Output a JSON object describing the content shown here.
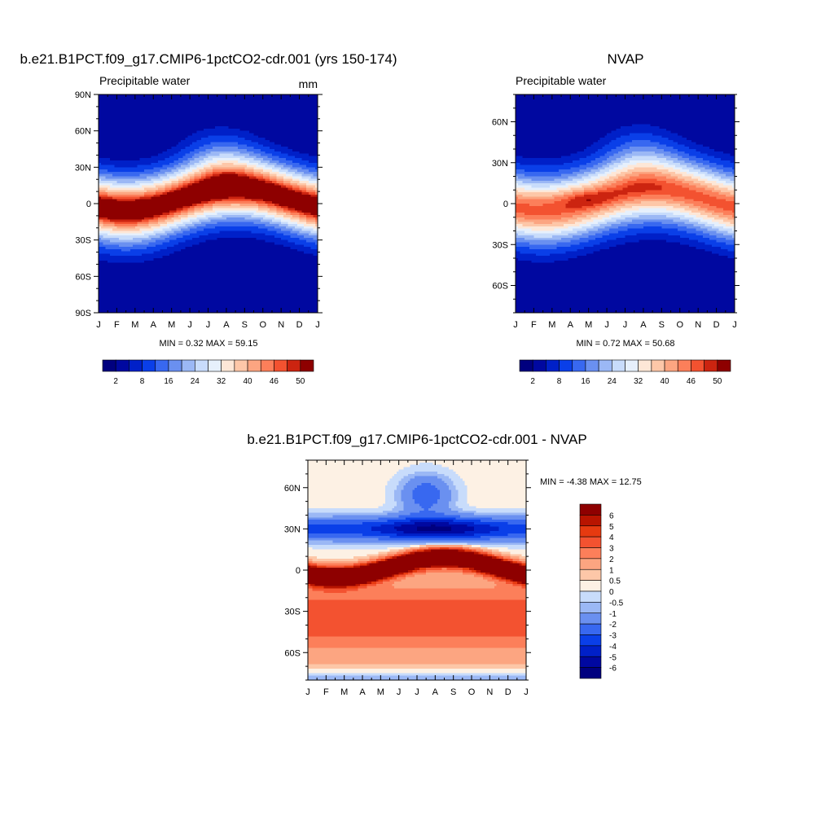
{
  "panels": [
    {
      "title": "b.e21.B1PCT.f09_g17.CMIP6-1pctCO2-cdr.001 (yrs 150-174)",
      "left_label": "Precipitable water",
      "right_label": "mm",
      "y_ticks": [
        "90N",
        "60N",
        "30N",
        "0",
        "30S",
        "60S",
        "90S"
      ],
      "x_ticks": [
        "J",
        "F",
        "M",
        "A",
        "M",
        "J",
        "J",
        "A",
        "S",
        "O",
        "N",
        "D",
        "J"
      ],
      "stats": "MIN =   0.32 MAX =  59.15",
      "colorbar_labels": [
        "2",
        "8",
        "16",
        "24",
        "32",
        "40",
        "46",
        "50"
      ]
    },
    {
      "title": "NVAP",
      "left_label": "Precipitable water",
      "right_label": "",
      "y_ticks": [
        "60N",
        "30N",
        "0",
        "30S",
        "60S"
      ],
      "x_ticks": [
        "J",
        "F",
        "M",
        "A",
        "M",
        "J",
        "J",
        "A",
        "S",
        "O",
        "N",
        "D",
        "J"
      ],
      "stats": "MIN =   0.72 MAX =  50.68",
      "colorbar_labels": [
        "2",
        "8",
        "16",
        "24",
        "32",
        "40",
        "46",
        "50"
      ]
    },
    {
      "title": "b.e21.B1PCT.f09_g17.CMIP6-1pctCO2-cdr.001 - NVAP",
      "y_ticks": [
        "60N",
        "30N",
        "0",
        "30S",
        "60S"
      ],
      "x_ticks": [
        "J",
        "F",
        "M",
        "A",
        "M",
        "J",
        "J",
        "A",
        "S",
        "O",
        "N",
        "D",
        "J"
      ],
      "stats": "MIN =  -4.38 MAX =  12.75",
      "colorbar_labels": [
        "6",
        "5",
        "4",
        "3",
        "2",
        "1",
        "0.5",
        "0",
        "-0.5",
        "-1",
        "-2",
        "-3",
        "-4",
        "-5",
        "-6"
      ]
    }
  ],
  "chart_data": [
    {
      "type": "heatmap",
      "title": "b.e21.B1PCT.f09_g17.CMIP6-1pctCO2-cdr.001 (yrs 150-174)",
      "field": "Precipitable water",
      "units": "mm",
      "x": "month (annual cycle)",
      "y_range": [
        -90,
        90
      ],
      "min": 0.32,
      "max": 59.15,
      "levels": [
        2,
        5,
        8,
        12,
        16,
        20,
        24,
        28,
        32,
        36,
        40,
        43,
        46,
        48,
        50
      ],
      "colors": [
        "#00007f",
        "#0008a0",
        "#0020c8",
        "#0a3fe8",
        "#3868f0",
        "#6a90f0",
        "#9bb8f5",
        "#c8dcfb",
        "#e6f0fc",
        "#fde7d7",
        "#fdc7a8",
        "#fca581",
        "#fc7f5a",
        "#f35230",
        "#cc2410",
        "#8e0000"
      ]
    },
    {
      "type": "heatmap",
      "title": "NVAP",
      "field": "Precipitable water",
      "y_range": [
        -80,
        80
      ],
      "min": 0.72,
      "max": 50.68,
      "levels": [
        2,
        5,
        8,
        12,
        16,
        20,
        24,
        28,
        32,
        36,
        40,
        43,
        46,
        48,
        50
      ],
      "colors": [
        "#00007f",
        "#0008a0",
        "#0020c8",
        "#0a3fe8",
        "#3868f0",
        "#6a90f0",
        "#9bb8f5",
        "#c8dcfb",
        "#e6f0fc",
        "#fde7d7",
        "#fdc7a8",
        "#fca581",
        "#fc7f5a",
        "#f35230",
        "#cc2410",
        "#8e0000"
      ]
    },
    {
      "type": "heatmap",
      "title": "b.e21.B1PCT.f09_g17.CMIP6-1pctCO2-cdr.001 - NVAP",
      "y_range": [
        -80,
        80
      ],
      "min": -4.38,
      "max": 12.75,
      "levels": [
        -6,
        -5,
        -4,
        -3,
        -2,
        -1,
        -0.5,
        0,
        0.5,
        1,
        2,
        3,
        4,
        5,
        6
      ],
      "colors": [
        "#00007f",
        "#0008a0",
        "#0020c8",
        "#0a3fe8",
        "#3868f0",
        "#6a90f0",
        "#9bb8f5",
        "#c8dcfb",
        "#fdf1e4",
        "#fdc7a8",
        "#fca581",
        "#fc7f5a",
        "#f35230",
        "#e63a10",
        "#b81400",
        "#8e0000"
      ]
    }
  ]
}
